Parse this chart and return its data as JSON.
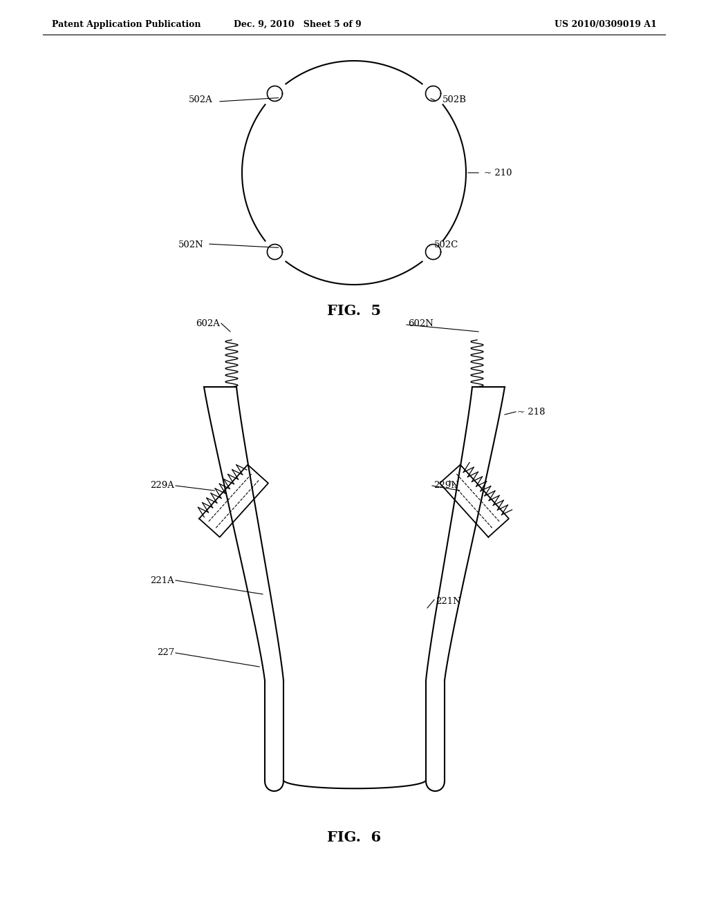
{
  "bg_color": "#ffffff",
  "header_left": "Patent Application Publication",
  "header_mid": "Dec. 9, 2010   Sheet 5 of 9",
  "header_right": "US 2010/0309019 A1",
  "fig5_label": "FIG.  5",
  "fig6_label": "FIG.  6",
  "text_color": "#000000",
  "line_color": "#000000",
  "line_width": 1.5
}
